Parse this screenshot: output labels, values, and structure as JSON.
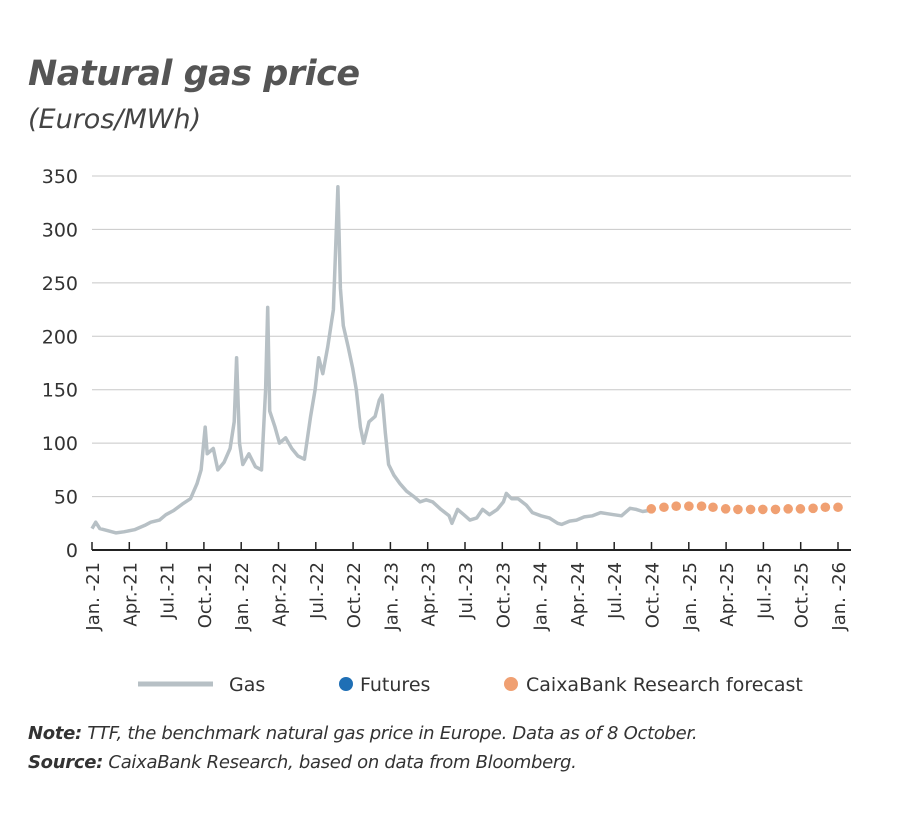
{
  "title": "Natural gas price",
  "subtitle": "(Euros/MWh)",
  "note_label": "Note:",
  "note_text": " TTF, the benchmark natural gas price in Europe. Data as of 8 October.",
  "source_label": "Source:",
  "source_text": " CaixaBank Research, based on data from Bloomberg.",
  "chart_data": {
    "type": "line",
    "xlabel": "",
    "ylabel": "",
    "ylim": [
      0,
      350
    ],
    "yticks": [
      0,
      50,
      100,
      150,
      200,
      250,
      300,
      350
    ],
    "xlim": [
      "2021-01-01",
      "2026-01-01"
    ],
    "xtick_labels": [
      "Jan. -21",
      "Apr.-21",
      "Jul.-21",
      "Oct.-21",
      "Jan. -22",
      "Apr.-22",
      "Jul.-22",
      "Oct.-22",
      "Jan. -23",
      "Apr.-23",
      "Jul.-23",
      "Oct.-23",
      "Jan. -24",
      "Apr.-24",
      "Jul.-24",
      "Oct.-24",
      "Jan. -25",
      "Apr.-25",
      "Jul.-25",
      "Oct.-25",
      "Jan. -26"
    ],
    "grid": "horizontal",
    "legend_placement": "bottom",
    "colors": {
      "gas": "#b7c0c5",
      "futures": "#1f6fb5",
      "forecast": "#f0a072",
      "grid": "#c8c8c8",
      "axis": "#222222"
    },
    "series": [
      {
        "name": "Gas",
        "kind": "line",
        "points": [
          [
            "2021-01-01",
            20
          ],
          [
            "2021-01-10",
            26
          ],
          [
            "2021-01-20",
            20
          ],
          [
            "2021-02-10",
            18
          ],
          [
            "2021-03-01",
            16
          ],
          [
            "2021-03-20",
            17
          ],
          [
            "2021-04-15",
            19
          ],
          [
            "2021-05-10",
            23
          ],
          [
            "2021-05-25",
            26
          ],
          [
            "2021-06-15",
            28
          ],
          [
            "2021-07-01",
            33
          ],
          [
            "2021-07-20",
            37
          ],
          [
            "2021-08-10",
            43
          ],
          [
            "2021-08-30",
            48
          ],
          [
            "2021-09-15",
            62
          ],
          [
            "2021-09-25",
            75
          ],
          [
            "2021-10-05",
            115
          ],
          [
            "2021-10-10",
            90
          ],
          [
            "2021-10-25",
            95
          ],
          [
            "2021-11-05",
            75
          ],
          [
            "2021-11-20",
            82
          ],
          [
            "2021-12-05",
            95
          ],
          [
            "2021-12-15",
            120
          ],
          [
            "2021-12-21",
            180
          ],
          [
            "2021-12-28",
            100
          ],
          [
            "2022-01-05",
            80
          ],
          [
            "2022-01-20",
            90
          ],
          [
            "2022-02-05",
            78
          ],
          [
            "2022-02-20",
            75
          ],
          [
            "2022-03-02",
            150
          ],
          [
            "2022-03-07",
            227
          ],
          [
            "2022-03-12",
            130
          ],
          [
            "2022-03-25",
            115
          ],
          [
            "2022-04-05",
            100
          ],
          [
            "2022-04-20",
            105
          ],
          [
            "2022-05-05",
            95
          ],
          [
            "2022-05-20",
            88
          ],
          [
            "2022-06-05",
            85
          ],
          [
            "2022-06-20",
            125
          ],
          [
            "2022-07-01",
            150
          ],
          [
            "2022-07-10",
            180
          ],
          [
            "2022-07-20",
            165
          ],
          [
            "2022-08-01",
            190
          ],
          [
            "2022-08-15",
            225
          ],
          [
            "2022-08-26",
            340
          ],
          [
            "2022-09-01",
            245
          ],
          [
            "2022-09-08",
            210
          ],
          [
            "2022-09-20",
            190
          ],
          [
            "2022-10-01",
            170
          ],
          [
            "2022-10-10",
            150
          ],
          [
            "2022-10-20",
            115
          ],
          [
            "2022-10-28",
            100
          ],
          [
            "2022-11-10",
            120
          ],
          [
            "2022-11-25",
            125
          ],
          [
            "2022-12-05",
            140
          ],
          [
            "2022-12-12",
            145
          ],
          [
            "2022-12-20",
            110
          ],
          [
            "2022-12-28",
            80
          ],
          [
            "2023-01-10",
            70
          ],
          [
            "2023-01-25",
            62
          ],
          [
            "2023-02-10",
            55
          ],
          [
            "2023-02-28",
            50
          ],
          [
            "2023-03-15",
            45
          ],
          [
            "2023-03-30",
            47
          ],
          [
            "2023-04-15",
            45
          ],
          [
            "2023-05-05",
            38
          ],
          [
            "2023-05-25",
            32
          ],
          [
            "2023-06-01",
            25
          ],
          [
            "2023-06-15",
            38
          ],
          [
            "2023-06-30",
            33
          ],
          [
            "2023-07-15",
            28
          ],
          [
            "2023-08-01",
            30
          ],
          [
            "2023-08-15",
            38
          ],
          [
            "2023-09-01",
            33
          ],
          [
            "2023-09-20",
            38
          ],
          [
            "2023-10-05",
            45
          ],
          [
            "2023-10-12",
            53
          ],
          [
            "2023-10-25",
            48
          ],
          [
            "2023-11-10",
            48
          ],
          [
            "2023-11-30",
            42
          ],
          [
            "2023-12-15",
            35
          ],
          [
            "2024-01-05",
            32
          ],
          [
            "2024-01-25",
            30
          ],
          [
            "2024-02-15",
            25
          ],
          [
            "2024-02-25",
            24
          ],
          [
            "2024-03-15",
            27
          ],
          [
            "2024-04-01",
            28
          ],
          [
            "2024-04-20",
            31
          ],
          [
            "2024-05-10",
            32
          ],
          [
            "2024-05-30",
            35
          ],
          [
            "2024-06-15",
            34
          ],
          [
            "2024-07-01",
            33
          ],
          [
            "2024-07-20",
            32
          ],
          [
            "2024-08-10",
            39
          ],
          [
            "2024-08-25",
            38
          ],
          [
            "2024-09-10",
            36
          ],
          [
            "2024-09-25",
            37
          ],
          [
            "2024-10-08",
            38
          ]
        ]
      },
      {
        "name": "Futures",
        "kind": "dots",
        "points": []
      },
      {
        "name": "CaixaBank Research forecast",
        "kind": "dots",
        "points": [
          [
            "2024-10-01",
            38.5
          ],
          [
            "2024-11-01",
            40
          ],
          [
            "2024-12-01",
            41
          ],
          [
            "2025-01-01",
            41
          ],
          [
            "2025-02-01",
            41
          ],
          [
            "2025-03-01",
            40
          ],
          [
            "2025-04-01",
            38.5
          ],
          [
            "2025-05-01",
            38
          ],
          [
            "2025-06-01",
            38
          ],
          [
            "2025-07-01",
            38
          ],
          [
            "2025-08-01",
            38
          ],
          [
            "2025-09-01",
            38.5
          ],
          [
            "2025-10-01",
            38.5
          ],
          [
            "2025-11-01",
            39
          ],
          [
            "2025-12-01",
            40
          ],
          [
            "2026-01-01",
            40
          ]
        ]
      }
    ]
  }
}
